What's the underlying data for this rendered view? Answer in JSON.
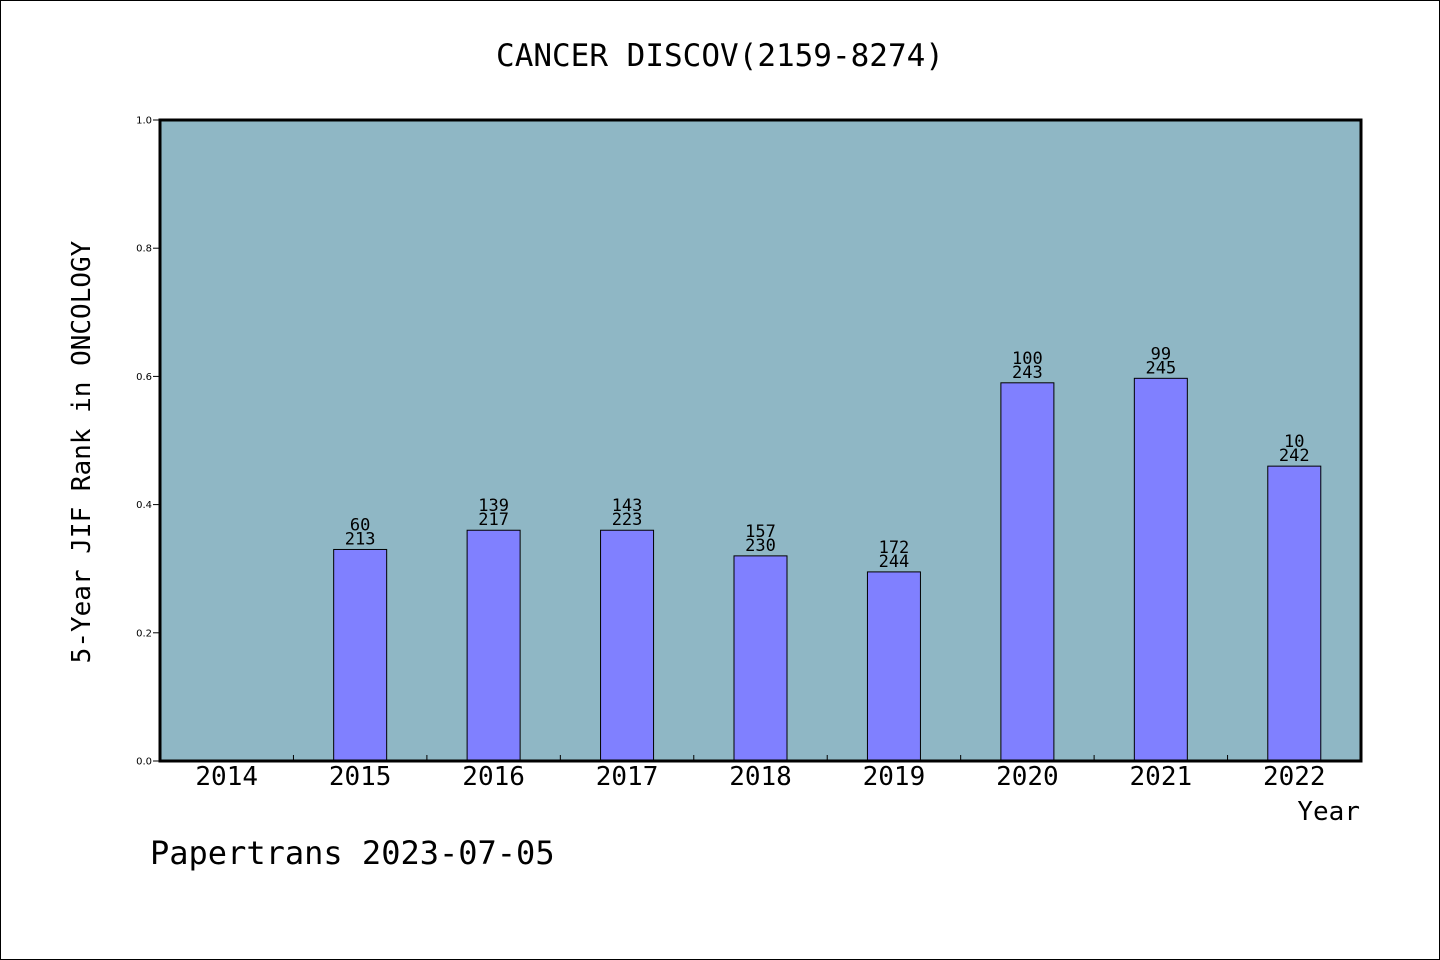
{
  "chart_data": {
    "type": "bar",
    "title": "CANCER DISCOV(2159-8274)",
    "xlabel": "Year",
    "ylabel": "5-Year JIF Rank in ONCOLOGY",
    "ylim": [
      0,
      1.0
    ],
    "yticks": [
      "0.0",
      "0.2",
      "0.4",
      "0.6",
      "0.8",
      "1.0"
    ],
    "categories": [
      "2014",
      "2015",
      "2016",
      "2017",
      "2018",
      "2019",
      "2020",
      "2021",
      "2022"
    ],
    "values": [
      null,
      0.33,
      0.36,
      0.36,
      0.32,
      0.295,
      0.59,
      0.597,
      0.46
    ],
    "rank_labels": [
      null,
      "60",
      "139",
      "143",
      "157",
      "172",
      "100",
      "99",
      "10"
    ],
    "total_labels": [
      null,
      "213",
      "217",
      "223",
      "230",
      "244",
      "243",
      "245",
      "242"
    ],
    "colors": {
      "plot_background": "#8fb7c5",
      "bar": "#8080ff",
      "axes": "#000000"
    },
    "grid": false,
    "footer": "Papertrans 2023-07-05"
  }
}
